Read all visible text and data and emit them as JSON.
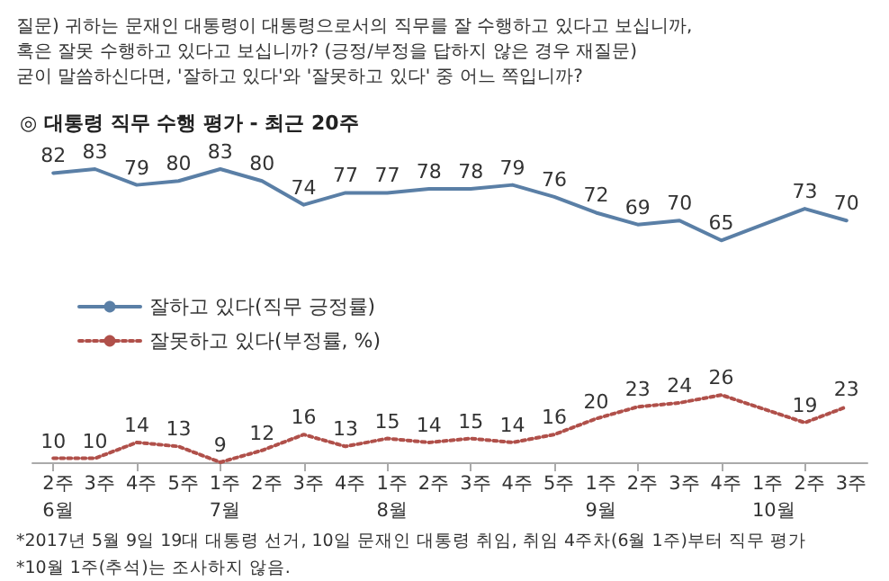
{
  "chart_data": {
    "type": "line",
    "title": "◎ 대통령 직무 수행 평가 - 최근 20주",
    "categories": [
      "2주\n6월",
      "3주",
      "4주",
      "5주",
      "1주\n7월",
      "2주",
      "3주",
      "4주",
      "1주\n8월",
      "2주",
      "3주",
      "4주",
      "5주",
      "1주\n9월",
      "2주",
      "3주",
      "4주",
      "1주\n10월",
      "2주",
      "3주"
    ],
    "series": [
      {
        "name": "잘하고 있다(직무 긍정률)",
        "color": "#5a7fa6",
        "line_style": "solid",
        "values": [
          82,
          83,
          79,
          80,
          83,
          80,
          74,
          77,
          77,
          78,
          78,
          79,
          76,
          72,
          69,
          70,
          65,
          null,
          73,
          70
        ]
      },
      {
        "name": "잘못하고 있다(부정률, %)",
        "color": "#b0504a",
        "line_style": "dotted",
        "values": [
          10,
          10,
          14,
          13,
          9,
          12,
          16,
          13,
          15,
          14,
          15,
          14,
          16,
          20,
          23,
          24,
          26,
          null,
          19,
          23
        ]
      }
    ],
    "data_labels": true,
    "marker": "none",
    "legend": "left",
    "annotations": [
      "질문) 귀하는 문재인 대통령이 대통령으로서의 직무를 잘 수행하고 있다고 보십니까,\n혹은 잘못 수행하고 있다고 보십니까? (긍정/부정을 답하지 않은 경우 재질문)\n굳이 말씀하신다면, '잘하고 있다'와 '잘못하고 있다' 중 어느 쪽입니까?",
      "*2017년 5월 9일 19대 대통령 선거, 10일 문재인 대통령 취임, 취임 4주차(6월 1주)부터 직무 평가",
      "*10월 1주(추석)는 조사하지 않음."
    ]
  }
}
